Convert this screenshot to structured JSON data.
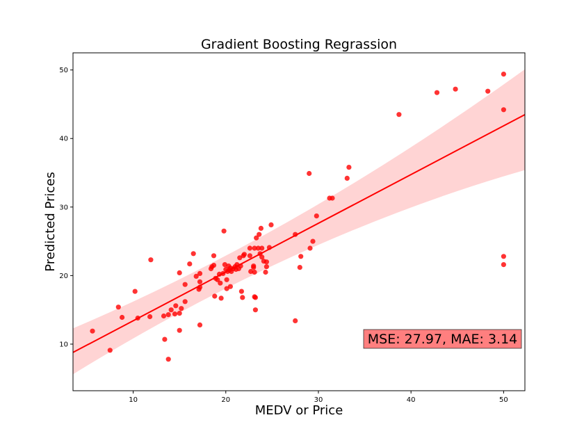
{
  "chart_data": {
    "type": "scatter",
    "title": "Gradient Boosting Regrassion",
    "xlabel": "MEDV or Price",
    "ylabel": "Predicted Prices",
    "xlim": [
      3.5,
      52.3
    ],
    "ylim": [
      3.2,
      52.5
    ],
    "xticks": [
      10,
      20,
      30,
      40,
      50
    ],
    "yticks": [
      10,
      20,
      30,
      40,
      50
    ],
    "grid": false,
    "colors": {
      "points": "#ff0000",
      "line": "#ff0000",
      "band": "#ffcccc",
      "annotation_bg": "#ff7f7f"
    },
    "annotation": "MSE: 27.97, MAE: 3.14",
    "regression": {
      "slope": 0.711,
      "intercept": 6.3,
      "ci_lower_at_xmin": 5.6,
      "ci_upper_at_xmin": 12.3,
      "ci_lower_at_xmax": 35.4,
      "ci_upper_at_xmax": 50.1
    },
    "points": [
      [
        5.6,
        11.9
      ],
      [
        7.5,
        9.1
      ],
      [
        8.4,
        15.4
      ],
      [
        8.8,
        13.9
      ],
      [
        10.2,
        17.7
      ],
      [
        10.5,
        13.8
      ],
      [
        11.8,
        14.0
      ],
      [
        11.9,
        22.3
      ],
      [
        13.3,
        14.1
      ],
      [
        13.4,
        10.7
      ],
      [
        13.8,
        7.8
      ],
      [
        13.8,
        14.3
      ],
      [
        14.1,
        15.0
      ],
      [
        14.5,
        14.4
      ],
      [
        14.6,
        15.6
      ],
      [
        15.0,
        20.4
      ],
      [
        15.0,
        14.5
      ],
      [
        15.0,
        12.0
      ],
      [
        15.2,
        15.2
      ],
      [
        15.6,
        16.2
      ],
      [
        15.6,
        18.7
      ],
      [
        16.1,
        21.7
      ],
      [
        16.5,
        23.2
      ],
      [
        16.8,
        19.9
      ],
      [
        17.1,
        18.0
      ],
      [
        17.2,
        18.3
      ],
      [
        17.2,
        19.1
      ],
      [
        17.2,
        20.3
      ],
      [
        17.2,
        12.8
      ],
      [
        18.4,
        21.0
      ],
      [
        18.5,
        21.3
      ],
      [
        18.7,
        22.9
      ],
      [
        18.7,
        21.5
      ],
      [
        18.8,
        17.0
      ],
      [
        18.9,
        19.6
      ],
      [
        19.1,
        19.4
      ],
      [
        19.3,
        20.2
      ],
      [
        19.4,
        18.9
      ],
      [
        19.5,
        16.7
      ],
      [
        19.7,
        20.3
      ],
      [
        19.8,
        26.5
      ],
      [
        19.9,
        21.6
      ],
      [
        20.0,
        20.9
      ],
      [
        20.1,
        19.4
      ],
      [
        20.1,
        18.1
      ],
      [
        20.2,
        20.6
      ],
      [
        20.3,
        21.4
      ],
      [
        20.4,
        20.8
      ],
      [
        20.5,
        21.1
      ],
      [
        20.5,
        18.4
      ],
      [
        20.6,
        20.6
      ],
      [
        20.8,
        21.0
      ],
      [
        21.0,
        21.3
      ],
      [
        21.1,
        20.9
      ],
      [
        21.2,
        21.6
      ],
      [
        21.4,
        21.0
      ],
      [
        21.5,
        22.6
      ],
      [
        21.6,
        21.4
      ],
      [
        21.7,
        17.7
      ],
      [
        21.8,
        16.8
      ],
      [
        21.9,
        22.9
      ],
      [
        22.0,
        23.1
      ],
      [
        22.6,
        22.9
      ],
      [
        22.6,
        24.0
      ],
      [
        22.7,
        20.6
      ],
      [
        23.0,
        21.4
      ],
      [
        23.0,
        21.2
      ],
      [
        23.1,
        20.5
      ],
      [
        23.1,
        24.0
      ],
      [
        23.1,
        16.9
      ],
      [
        23.2,
        15.0
      ],
      [
        23.2,
        16.8
      ],
      [
        23.3,
        25.5
      ],
      [
        23.5,
        24.0
      ],
      [
        23.6,
        26.0
      ],
      [
        23.7,
        23.2
      ],
      [
        23.8,
        26.9
      ],
      [
        23.9,
        22.7
      ],
      [
        23.9,
        24.0
      ],
      [
        24.1,
        22.1
      ],
      [
        24.3,
        20.5
      ],
      [
        24.4,
        21.3
      ],
      [
        24.4,
        22.0
      ],
      [
        24.7,
        24.1
      ],
      [
        24.9,
        27.4
      ],
      [
        27.5,
        26.0
      ],
      [
        27.5,
        13.4
      ],
      [
        28.0,
        21.2
      ],
      [
        28.1,
        22.8
      ],
      [
        29.0,
        34.9
      ],
      [
        29.1,
        24.0
      ],
      [
        29.4,
        25.0
      ],
      [
        29.8,
        28.7
      ],
      [
        31.2,
        31.3
      ],
      [
        31.5,
        31.3
      ],
      [
        33.1,
        34.2
      ],
      [
        33.3,
        35.8
      ],
      [
        38.7,
        43.5
      ],
      [
        42.8,
        46.7
      ],
      [
        44.8,
        47.2
      ],
      [
        48.3,
        46.9
      ],
      [
        50.0,
        49.4
      ],
      [
        50.0,
        44.2
      ],
      [
        50.0,
        22.8
      ],
      [
        50.0,
        21.6
      ]
    ]
  }
}
